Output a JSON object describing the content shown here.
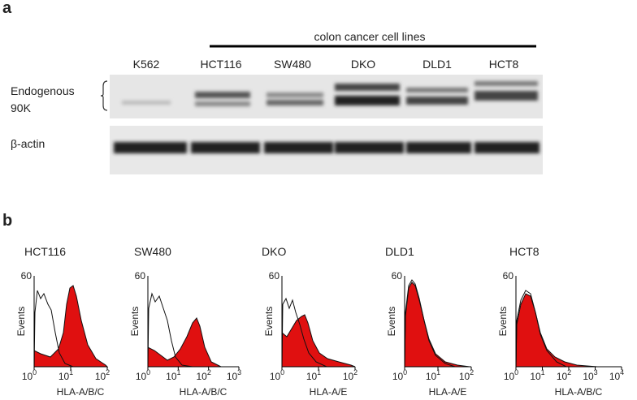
{
  "panel_a": {
    "label": "a",
    "header": "colon cancer cell lines",
    "lanes": [
      "K562",
      "HCT116",
      "SW480",
      "DKO",
      "DLD1",
      "HCT8"
    ],
    "row_labels": [
      "Endogenous",
      "90K",
      "β-actin"
    ]
  },
  "panel_b": {
    "label": "b",
    "y_axis": "Events",
    "y_tick": "60",
    "plots": [
      {
        "title": "HCT116",
        "x_label": "HLA-A/B/C",
        "ticks": [
          {
            "base": "10",
            "exp": "0"
          },
          {
            "base": "10",
            "exp": "1"
          },
          {
            "base": "10",
            "exp": "2"
          }
        ]
      },
      {
        "title": "SW480",
        "x_label": "HLA-A/B/C",
        "ticks": [
          {
            "base": "10",
            "exp": "0"
          },
          {
            "base": "10",
            "exp": "1"
          },
          {
            "base": "10",
            "exp": "2"
          },
          {
            "base": "10",
            "exp": "3"
          }
        ]
      },
      {
        "title": "DKO",
        "x_label": "HLA-A/E",
        "ticks": [
          {
            "base": "10",
            "exp": "0"
          },
          {
            "base": "10",
            "exp": "1"
          },
          {
            "base": "10",
            "exp": "2"
          }
        ]
      },
      {
        "title": "DLD1",
        "x_label": "HLA-A/E",
        "ticks": [
          {
            "base": "10",
            "exp": "0"
          },
          {
            "base": "10",
            "exp": "1"
          },
          {
            "base": "10",
            "exp": "2"
          }
        ]
      },
      {
        "title": "HCT8",
        "x_label": "HLA-A/B/C",
        "ticks": [
          {
            "base": "10",
            "exp": "0"
          },
          {
            "base": "10",
            "exp": "1"
          },
          {
            "base": "10",
            "exp": "2"
          },
          {
            "base": "10",
            "exp": "3"
          },
          {
            "base": "10",
            "exp": "4"
          }
        ]
      }
    ]
  }
}
